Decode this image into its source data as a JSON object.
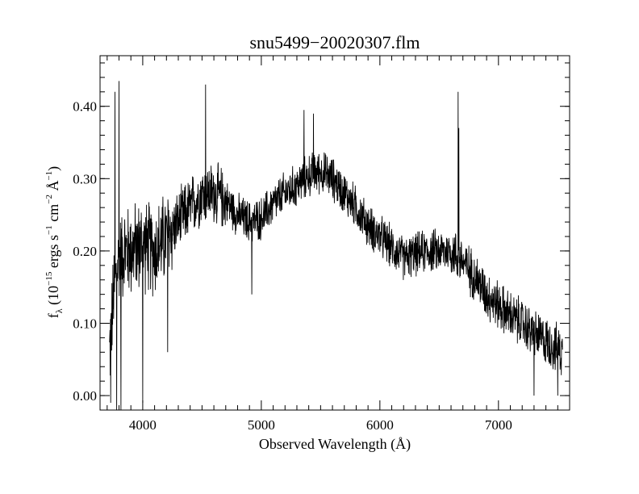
{
  "chart_data": {
    "type": "line",
    "title": "snu5499−20020307.flm",
    "xlabel": "Observed Wavelength (Å)",
    "ylabel": {
      "f": "f",
      "lambda_sub": "λ",
      "open": "(10",
      "exp1": "−15",
      "ergs": "ergs s",
      "exp2": "−1",
      "cm": "cm",
      "exp3": "−2",
      "ang": "Å",
      "exp4": "−1",
      "close": ")"
    },
    "xlim": [
      3640,
      7600
    ],
    "ylim": [
      -0.02,
      0.47
    ],
    "xticks": [
      4000,
      5000,
      6000,
      7000
    ],
    "xtick_labels": [
      "4000",
      "5000",
      "6000",
      "7000"
    ],
    "yticks": [
      0.0,
      0.1,
      0.2,
      0.3,
      0.4
    ],
    "ytick_labels": [
      "0.00",
      "0.10",
      "0.20",
      "0.30",
      "0.40"
    ],
    "grid": false,
    "color": "#000000",
    "series": [
      {
        "x_start": 3720,
        "x_end": 7540,
        "envelope": [
          [
            3720,
            0.06
          ],
          [
            3760,
            0.15
          ],
          [
            3800,
            0.19
          ],
          [
            3850,
            0.2
          ],
          [
            3900,
            0.2
          ],
          [
            4000,
            0.21
          ],
          [
            4100,
            0.2
          ],
          [
            4200,
            0.22
          ],
          [
            4300,
            0.24
          ],
          [
            4400,
            0.26
          ],
          [
            4500,
            0.28
          ],
          [
            4600,
            0.28
          ],
          [
            4700,
            0.27
          ],
          [
            4800,
            0.25
          ],
          [
            4900,
            0.24
          ],
          [
            5000,
            0.245
          ],
          [
            5100,
            0.265
          ],
          [
            5200,
            0.28
          ],
          [
            5300,
            0.29
          ],
          [
            5400,
            0.305
          ],
          [
            5500,
            0.31
          ],
          [
            5600,
            0.3
          ],
          [
            5700,
            0.28
          ],
          [
            5800,
            0.26
          ],
          [
            5900,
            0.235
          ],
          [
            6000,
            0.22
          ],
          [
            6100,
            0.205
          ],
          [
            6200,
            0.19
          ],
          [
            6300,
            0.195
          ],
          [
            6400,
            0.2
          ],
          [
            6500,
            0.2
          ],
          [
            6600,
            0.2
          ],
          [
            6700,
            0.185
          ],
          [
            6800,
            0.165
          ],
          [
            6900,
            0.14
          ],
          [
            7000,
            0.125
          ],
          [
            7100,
            0.11
          ],
          [
            7200,
            0.1
          ],
          [
            7300,
            0.085
          ],
          [
            7400,
            0.075
          ],
          [
            7540,
            0.06
          ]
        ],
        "peaks": [
          [
            3765,
            0.42
          ],
          [
            3800,
            0.435
          ],
          [
            3730,
            -0.01
          ],
          [
            3780,
            -0.02
          ],
          [
            3815,
            -0.02
          ],
          [
            4000,
            -0.01
          ],
          [
            4210,
            0.06
          ],
          [
            4530,
            0.43
          ],
          [
            4920,
            0.14
          ],
          [
            5360,
            0.395
          ],
          [
            5440,
            0.39
          ],
          [
            6660,
            0.42
          ],
          [
            6665,
            0.37
          ],
          [
            7300,
            0.0
          ],
          [
            7500,
            0.0
          ]
        ]
      }
    ]
  }
}
